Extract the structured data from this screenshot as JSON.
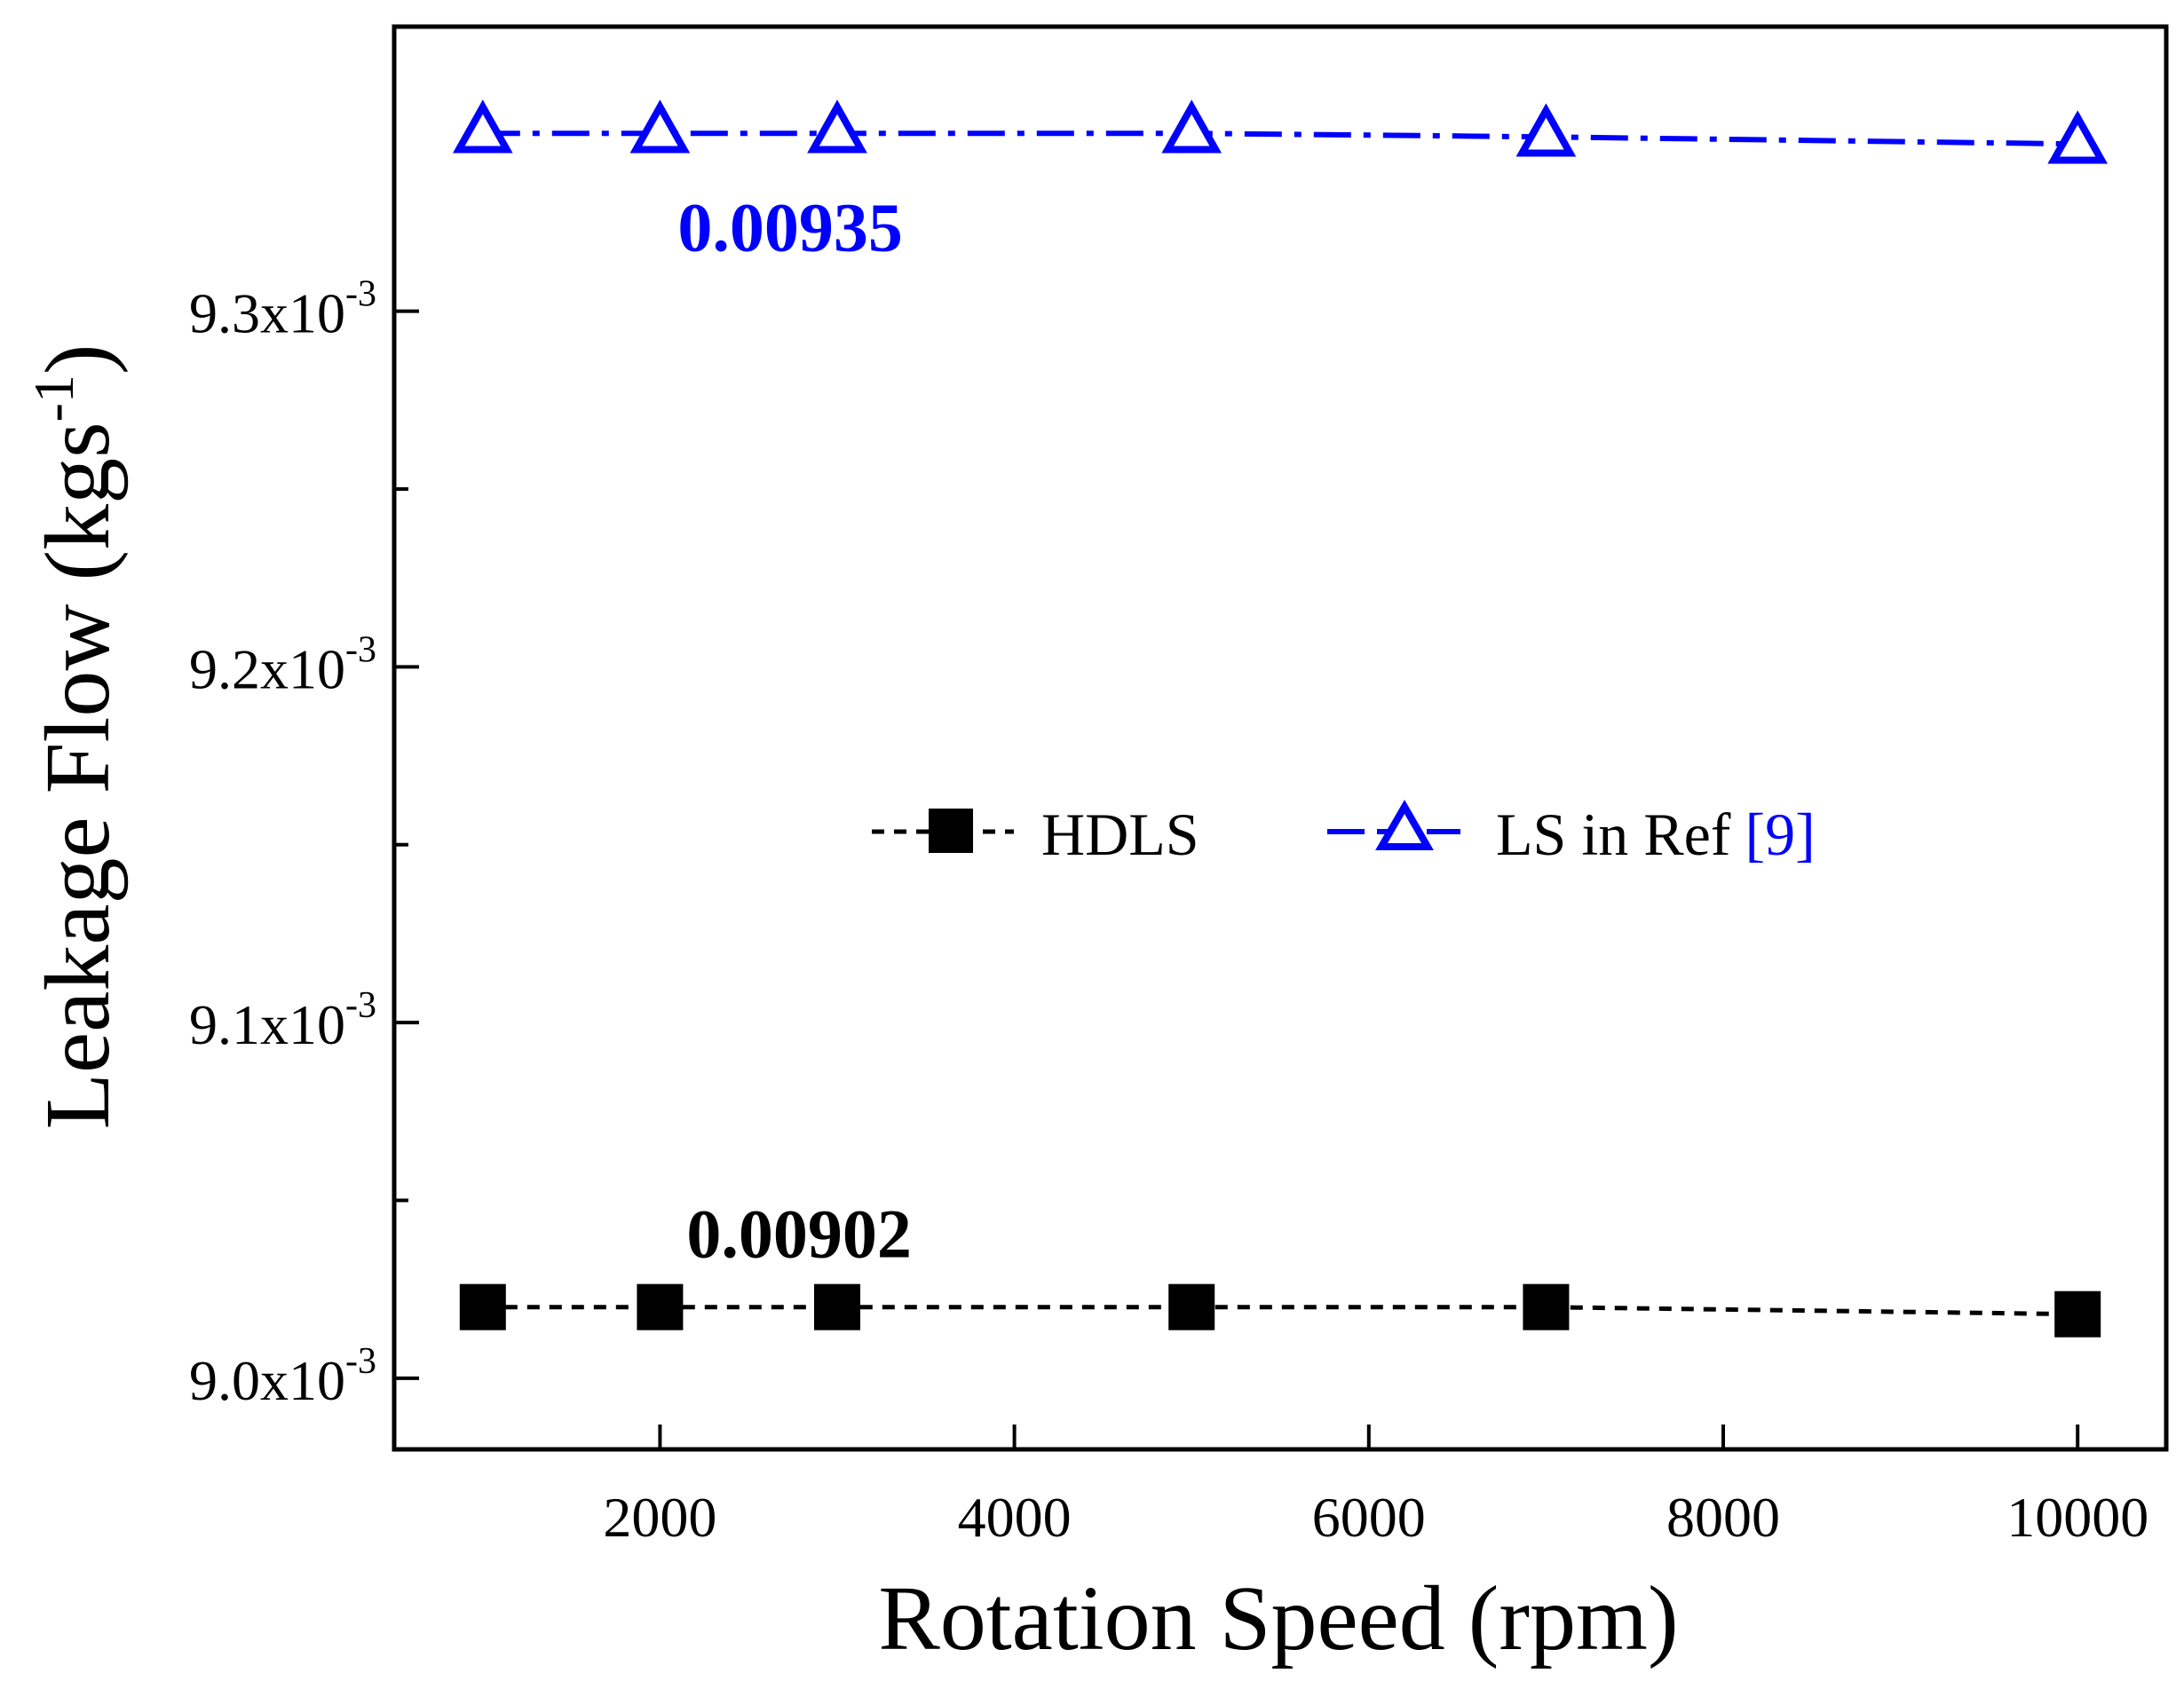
{
  "chart_data": {
    "type": "line",
    "xlabel": "Rotation Speed (rpm)",
    "ylabel_main": "Leakage Flow (kgs",
    "ylabel_sup": "-1",
    "ylabel_close": ")",
    "xlim": [
      500,
      10500
    ],
    "ylim": [
      0.00898,
      0.00938
    ],
    "x_ticks": [
      2000,
      4000,
      6000,
      8000,
      10000
    ],
    "x_tick_labels": [
      "2000",
      "4000",
      "6000",
      "8000",
      "10000"
    ],
    "y_ticks": [
      0.009,
      0.0091,
      0.0092,
      0.0093
    ],
    "y_tick_mantissas": [
      "9.0x10",
      "9.1x10",
      "9.2x10",
      "9.3x10"
    ],
    "y_tick_exponent": "-3",
    "y_minor_ticks": [
      0.00905,
      0.00915,
      0.00925
    ],
    "series": [
      {
        "name": "HDLS",
        "marker": "square",
        "line_style": "dash",
        "color": "#000000",
        "x": [
          1000,
          2000,
          3000,
          5000,
          7000,
          10000
        ],
        "y": [
          0.00902,
          0.00902,
          0.00902,
          0.00902,
          0.00902,
          0.009018
        ]
      },
      {
        "name": "LS in Ref",
        "name_ref": "[9]",
        "marker": "triangle",
        "line_style": "dashdot",
        "color": "#0000ff",
        "x": [
          1000,
          2000,
          3000,
          5000,
          7000,
          10000
        ],
        "y": [
          0.00935,
          0.00935,
          0.00935,
          0.00935,
          0.009349,
          0.009347
        ]
      }
    ],
    "annotations": [
      {
        "text": "0.00935",
        "color": "#0000ff",
        "x": 2100,
        "y": 0.009317
      },
      {
        "text": "0.00902",
        "color": "#000000",
        "x": 2150,
        "y": 0.009034
      }
    ],
    "legend": {
      "placement": "center",
      "ref_color": "#0000ff"
    }
  }
}
